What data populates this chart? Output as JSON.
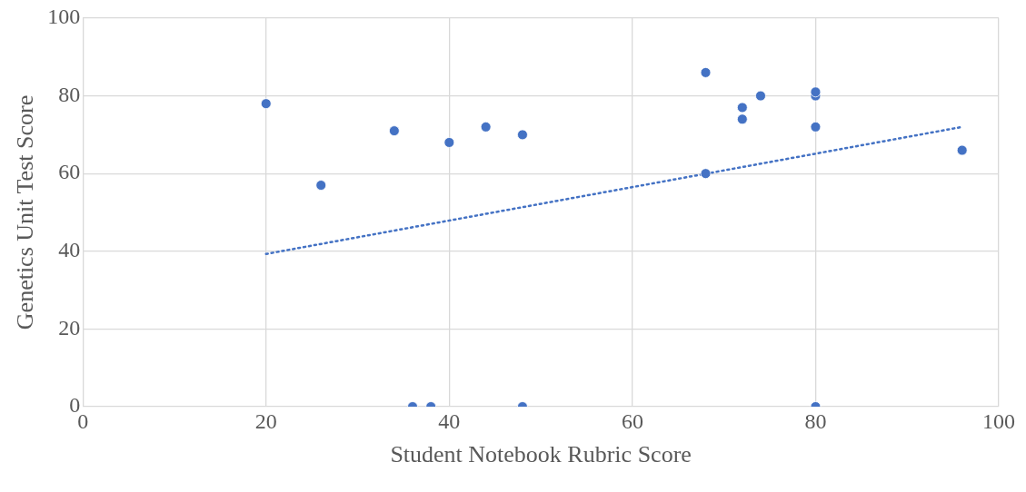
{
  "chart_data": {
    "type": "scatter",
    "xlabel": "Student Notebook Rubric Score",
    "ylabel": "Genetics Unit Test Score",
    "xlim": [
      0,
      100
    ],
    "xticks": [
      0,
      20,
      40,
      60,
      80,
      100
    ],
    "ylim": [
      0,
      100
    ],
    "yticks": [
      0,
      20,
      40,
      60,
      80,
      100
    ],
    "grid": true,
    "legend": false,
    "marker": "circle",
    "series": [
      {
        "type": "scatter",
        "color": "#4472c4",
        "x": [
          20,
          26,
          34,
          40,
          44,
          48,
          68,
          68,
          72,
          72,
          74,
          80,
          80,
          80,
          96,
          36,
          38,
          48,
          80
        ],
        "values": [
          78,
          57,
          71,
          68,
          72,
          70,
          86,
          60,
          77,
          74,
          80,
          80,
          81,
          72,
          66,
          0,
          0,
          0,
          0
        ]
      },
      {
        "type": "line",
        "color": "#4472c4",
        "line_style": "dotted",
        "marker": "none",
        "x": [
          20,
          96
        ],
        "values": [
          39.3,
          72
        ]
      }
    ]
  }
}
